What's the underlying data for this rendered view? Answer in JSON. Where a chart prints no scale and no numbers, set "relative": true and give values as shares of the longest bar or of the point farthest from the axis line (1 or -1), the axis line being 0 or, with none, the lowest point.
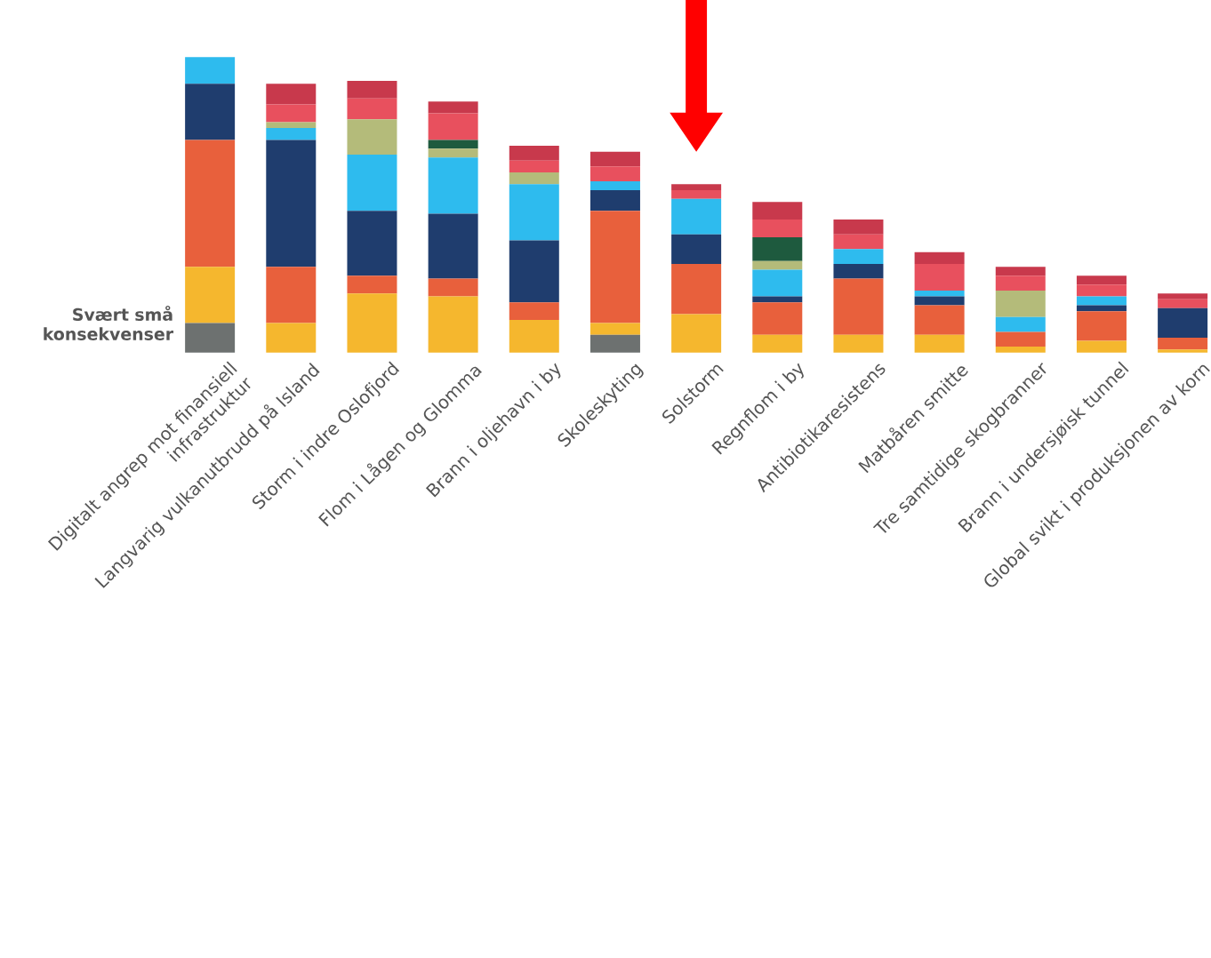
{
  "chart_data": {
    "type": "bar",
    "stacked": true,
    "relative": true,
    "categories": [
      "Digitalt angrep mot finansiell infrastruktur",
      "Langvarig vulkanutbrudd på Island",
      "Storm i indre Oslofjord",
      "Flom i Lågen og Glomma",
      "Brann i oljehavn i by",
      "Skoleskyting",
      "Solstorm",
      "Regnflom i by",
      "Antibiotikaresistens",
      "Matbåren smitte",
      "Tre samtidige skogbranner",
      "Brann i undersjøisk tunnel",
      "Global svikt i produksjonen av korn"
    ],
    "series": [
      {
        "name": "Svært små konsekvenser",
        "color": "#6d7170",
        "values": [
          0.1,
          0,
          0,
          0,
          0,
          0.06,
          0,
          0,
          0,
          0,
          0,
          0,
          0
        ]
      },
      {
        "color": "#f5b72e",
        "values": [
          0.19,
          0.1,
          0.2,
          0.19,
          0.11,
          0.04,
          0.13,
          0.06,
          0.06,
          0.06,
          0.02,
          0.04,
          0.01
        ]
      },
      {
        "color": "#e8603c",
        "values": [
          0.43,
          0.19,
          0.06,
          0.06,
          0.06,
          0.38,
          0.17,
          0.11,
          0.19,
          0.1,
          0.05,
          0.1,
          0.04
        ]
      },
      {
        "color": "#1f3d6e",
        "values": [
          0.19,
          0.43,
          0.22,
          0.22,
          0.21,
          0.07,
          0.1,
          0.02,
          0.05,
          0.03,
          0,
          0.02,
          0.1
        ]
      },
      {
        "color": "#2ebbee",
        "values": [
          0.09,
          0.04,
          0.19,
          0.19,
          0.19,
          0.03,
          0.12,
          0.09,
          0.05,
          0.02,
          0.05,
          0.03,
          0
        ]
      },
      {
        "color": "#b4bb7a",
        "values": [
          0,
          0.02,
          0.12,
          0.03,
          0.04,
          0,
          0,
          0.03,
          0,
          0,
          0.09,
          0,
          0
        ]
      },
      {
        "color": "#1e5a3e",
        "values": [
          0,
          0,
          0,
          0.03,
          0,
          0,
          0,
          0.08,
          0,
          0,
          0,
          0,
          0
        ]
      },
      {
        "color": "#e8505e",
        "values": [
          0,
          0.06,
          0.07,
          0.09,
          0.04,
          0.05,
          0.03,
          0.06,
          0.05,
          0.09,
          0.05,
          0.04,
          0.03
        ]
      },
      {
        "color": "#c8394c",
        "values": [
          0,
          0.07,
          0.06,
          0.04,
          0.05,
          0.05,
          0.02,
          0.06,
          0.05,
          0.04,
          0.03,
          0.03,
          0.02
        ]
      }
    ]
  }
}
